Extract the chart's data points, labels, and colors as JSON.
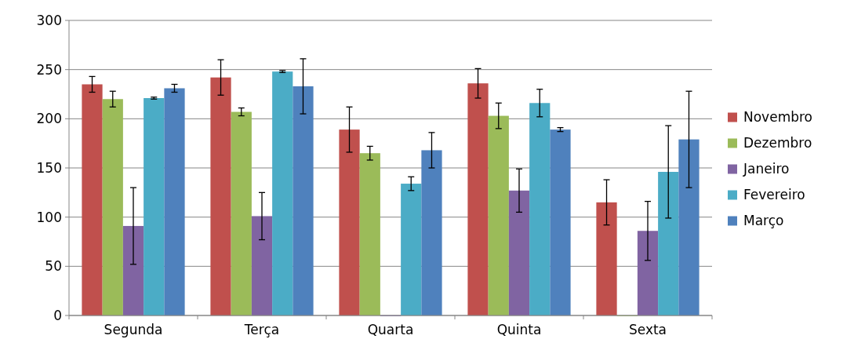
{
  "chart_data": {
    "type": "bar",
    "categories": [
      "Segunda",
      "Terça",
      "Quarta",
      "Quinta",
      "Sexta"
    ],
    "series": [
      {
        "name": "Novembro",
        "color": "#c0504d",
        "values": [
          235,
          242,
          189,
          236,
          115
        ],
        "errors": [
          8,
          18,
          23,
          15,
          23
        ]
      },
      {
        "name": "Dezembro",
        "color": "#9bbb59",
        "values": [
          220,
          207,
          165,
          203,
          0
        ],
        "errors": [
          8,
          4,
          7,
          13,
          null
        ]
      },
      {
        "name": "Janeiro",
        "color": "#8064a2",
        "values": [
          91,
          101,
          0,
          127,
          86
        ],
        "errors": [
          39,
          24,
          null,
          22,
          30
        ]
      },
      {
        "name": "Fevereiro",
        "color": "#4bacc6",
        "values": [
          221,
          248,
          134,
          216,
          146
        ],
        "errors": [
          1,
          1,
          7,
          14,
          47
        ]
      },
      {
        "name": "Março",
        "color": "#4f81bd",
        "values": [
          231,
          233,
          168,
          189,
          179
        ],
        "errors": [
          4,
          28,
          18,
          2,
          49
        ]
      }
    ],
    "ylim": [
      0,
      300
    ],
    "yticks": [
      0,
      50,
      100,
      150,
      200,
      250,
      300
    ],
    "grid": "y",
    "legend": "right"
  }
}
